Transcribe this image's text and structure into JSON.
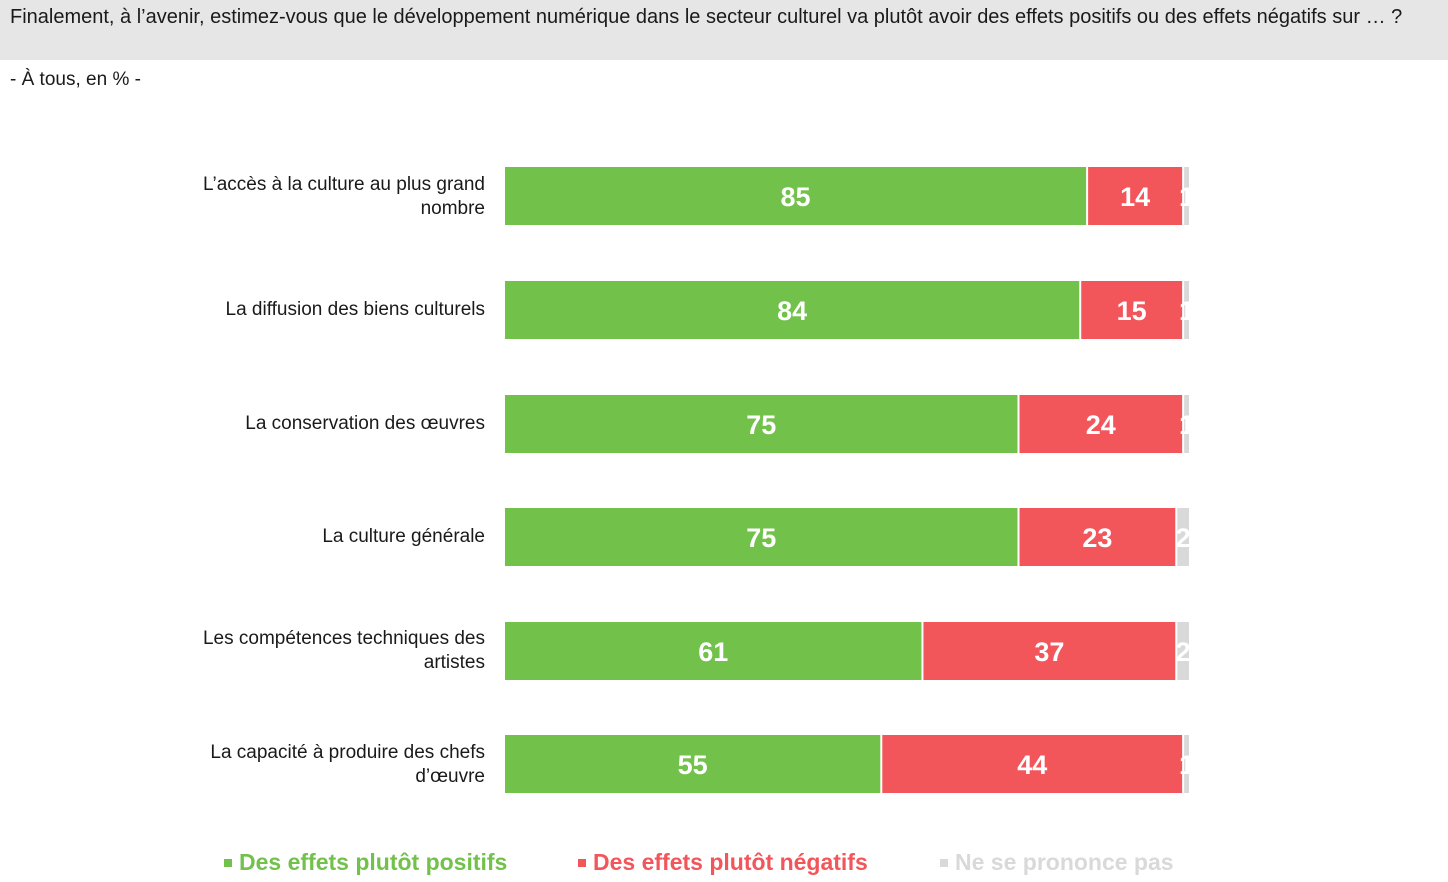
{
  "question": "Finalement, à l’avenir, estimez-vous que le développement numérique dans le secteur culturel va plutôt avoir des effets positifs ou des effets négatifs sur … ?",
  "subtitle": "- À tous, en % -",
  "colors": {
    "positive": "#72c14b",
    "negative": "#f2555a",
    "no_opinion": "#d9d9d9"
  },
  "chart_data": {
    "type": "bar",
    "orientation": "horizontal",
    "stacked": true,
    "categories": [
      "L’accès à la culture au plus grand nombre",
      "La diffusion des biens culturels",
      "La conservation des œuvres",
      "La culture générale",
      "Les compétences techniques des artistes",
      "La capacité à produire des chefs d’œuvre"
    ],
    "series": [
      {
        "name": "Des effets plutôt positifs",
        "color": "#72c14b",
        "values": [
          85,
          84,
          75,
          75,
          61,
          55
        ]
      },
      {
        "name": "Des effets plutôt négatifs",
        "color": "#f2555a",
        "values": [
          14,
          15,
          24,
          23,
          37,
          44
        ]
      },
      {
        "name": "Ne se prononce pas",
        "color": "#d9d9d9",
        "values": [
          1,
          1,
          1,
          2,
          2,
          1
        ]
      }
    ],
    "xlim": [
      0,
      100
    ],
    "grid": false,
    "legend": "bottom"
  }
}
